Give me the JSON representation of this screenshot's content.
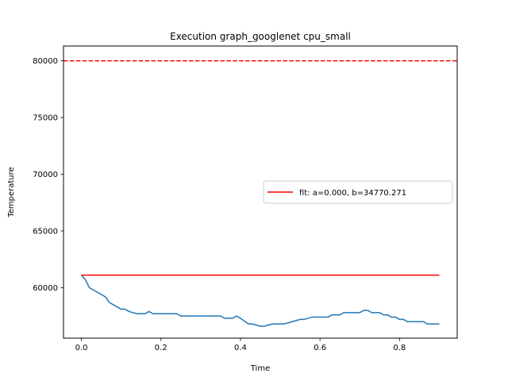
{
  "chart_data": {
    "type": "line",
    "title": "Execution graph_googlenet cpu_small",
    "xlabel": "Time",
    "ylabel": "Temperature",
    "xlim": [
      -0.045,
      0.945
    ],
    "ylim": [
      55550,
      81300
    ],
    "xticks": [
      0.0,
      0.2,
      0.4,
      0.6,
      0.8
    ],
    "xtick_labels": [
      "0.0",
      "0.2",
      "0.4",
      "0.6",
      "0.8"
    ],
    "yticks": [
      60000,
      65000,
      70000,
      75000,
      80000
    ],
    "ytick_labels": [
      "60000",
      "65000",
      "70000",
      "75000",
      "80000"
    ],
    "grid": false,
    "legend_position": "center-right",
    "series": [
      {
        "kind": "line",
        "color": "#1f77b4",
        "x": [
          0.0,
          0.01,
          0.02,
          0.04,
          0.06,
          0.07,
          0.09,
          0.1,
          0.11,
          0.12,
          0.14,
          0.16,
          0.17,
          0.18,
          0.2,
          0.22,
          0.24,
          0.25,
          0.27,
          0.29,
          0.31,
          0.33,
          0.35,
          0.36,
          0.38,
          0.39,
          0.4,
          0.42,
          0.43,
          0.45,
          0.46,
          0.48,
          0.5,
          0.51,
          0.53,
          0.55,
          0.56,
          0.58,
          0.6,
          0.62,
          0.63,
          0.65,
          0.66,
          0.68,
          0.7,
          0.71,
          0.72,
          0.73,
          0.75,
          0.76,
          0.77,
          0.78,
          0.79,
          0.8,
          0.81,
          0.82,
          0.84,
          0.85,
          0.86,
          0.87,
          0.88,
          0.89,
          0.9
        ],
        "y": [
          61100,
          60700,
          60000,
          59600,
          59200,
          58700,
          58300,
          58100,
          58100,
          57900,
          57700,
          57700,
          57900,
          57700,
          57700,
          57700,
          57700,
          57500,
          57500,
          57500,
          57500,
          57500,
          57500,
          57300,
          57300,
          57500,
          57300,
          56800,
          56800,
          56600,
          56600,
          56800,
          56800,
          56800,
          57000,
          57200,
          57200,
          57400,
          57400,
          57400,
          57600,
          57600,
          57800,
          57800,
          57800,
          58000,
          58000,
          57800,
          57800,
          57600,
          57600,
          57400,
          57400,
          57200,
          57200,
          57000,
          57000,
          57000,
          57000,
          56800,
          56800,
          56800,
          56800
        ]
      },
      {
        "kind": "line",
        "name": "fit: a=0.000, b=34770.271",
        "color": "#ff0000",
        "x": [
          0.0,
          0.9
        ],
        "y": [
          61100,
          61100
        ]
      },
      {
        "kind": "hline",
        "color": "#ff0000",
        "dashed": true,
        "y": 80000
      }
    ]
  }
}
